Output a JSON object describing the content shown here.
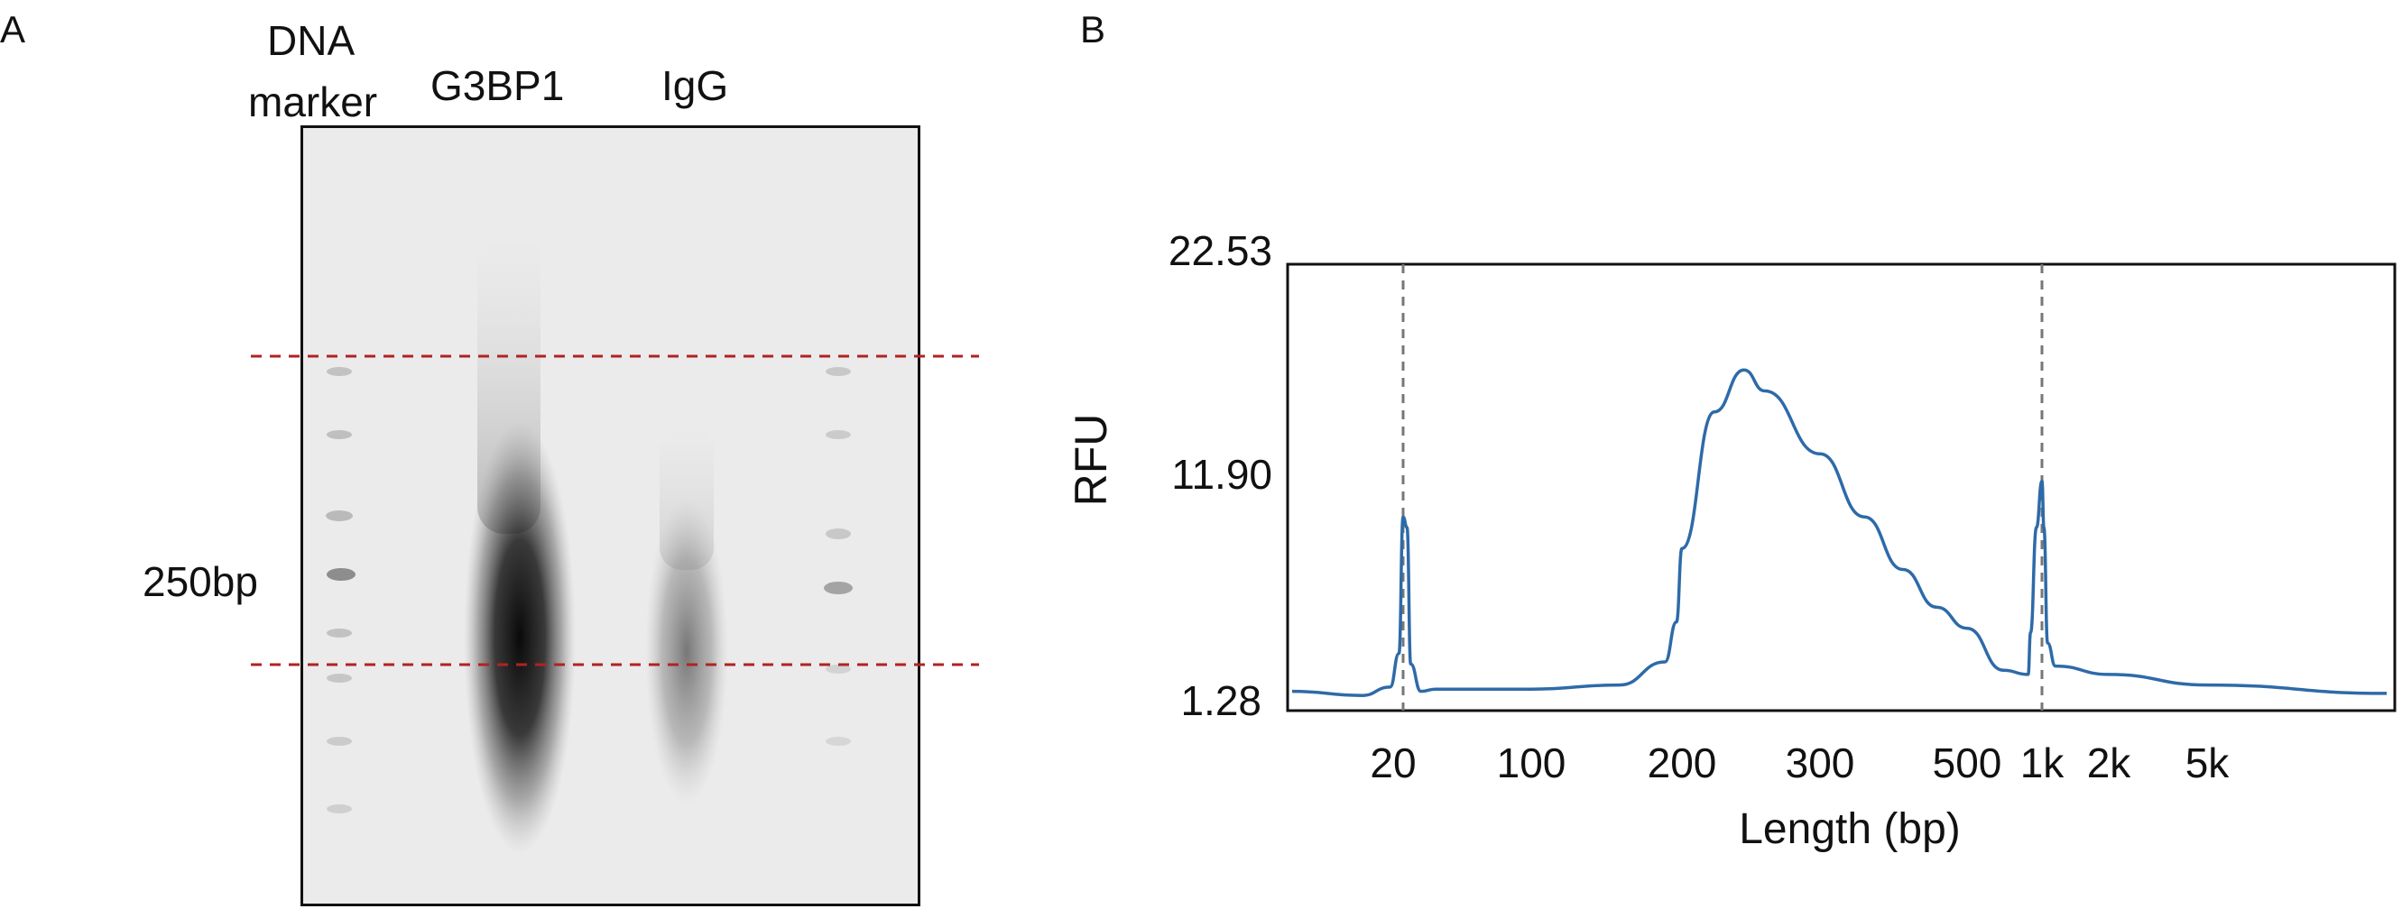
{
  "panel_a": {
    "letter": "A",
    "lane_labels": {
      "marker_line1": "DNA",
      "marker_line2": "marker",
      "g3bp1": "G3BP1",
      "igg": "IgG"
    },
    "size_label": "250bp"
  },
  "panel_b": {
    "letter": "B"
  },
  "colors": {
    "trace": "#2e6aa8",
    "guide": "#b22222",
    "axis": "#111111",
    "dash": "#777777"
  },
  "chart_data": {
    "type": "line",
    "title": "",
    "xlabel": "Length (bp)",
    "ylabel": "RFU",
    "x_scale": "categorical-ladder",
    "x_ticks": [
      "20",
      "100",
      "200",
      "300",
      "500",
      "1k",
      "2k",
      "5k"
    ],
    "y_ticks": [
      "1.28",
      "11.90",
      "22.53"
    ],
    "ylim": [
      1.28,
      22.53
    ],
    "grid": false,
    "legend": "none",
    "reference_lines_bp": [
      20,
      1000
    ],
    "series": [
      {
        "values_note": "",
        "points": [
          {
            "x": 5,
            "y": 2.2
          },
          {
            "x": 12,
            "y": 2.0
          },
          {
            "x": 17,
            "y": 2.4
          },
          {
            "x": 19,
            "y": 4.0
          },
          {
            "x": 20,
            "y": 10.5
          },
          {
            "x": 21,
            "y": 10.0
          },
          {
            "x": 22,
            "y": 3.5
          },
          {
            "x": 25,
            "y": 2.2
          },
          {
            "x": 30,
            "y": 2.3
          },
          {
            "x": 60,
            "y": 2.3
          },
          {
            "x": 100,
            "y": 2.3
          },
          {
            "x": 150,
            "y": 2.5
          },
          {
            "x": 185,
            "y": 3.6
          },
          {
            "x": 195,
            "y": 5.5
          },
          {
            "x": 200,
            "y": 9.0
          },
          {
            "x": 220,
            "y": 15.5
          },
          {
            "x": 240,
            "y": 17.5
          },
          {
            "x": 255,
            "y": 16.5
          },
          {
            "x": 300,
            "y": 13.5
          },
          {
            "x": 350,
            "y": 10.5
          },
          {
            "x": 400,
            "y": 8.0
          },
          {
            "x": 450,
            "y": 6.2
          },
          {
            "x": 500,
            "y": 5.2
          },
          {
            "x": 700,
            "y": 3.2
          },
          {
            "x": 880,
            "y": 3.0
          },
          {
            "x": 900,
            "y": 5.0
          },
          {
            "x": 950,
            "y": 10.0
          },
          {
            "x": 1000,
            "y": 12.2
          },
          {
            "x": 1020,
            "y": 10.0
          },
          {
            "x": 1060,
            "y": 4.5
          },
          {
            "x": 1150,
            "y": 3.4
          },
          {
            "x": 2000,
            "y": 3.0
          },
          {
            "x": 5000,
            "y": 2.5
          },
          {
            "x": 10000,
            "y": 2.1
          }
        ]
      }
    ]
  }
}
